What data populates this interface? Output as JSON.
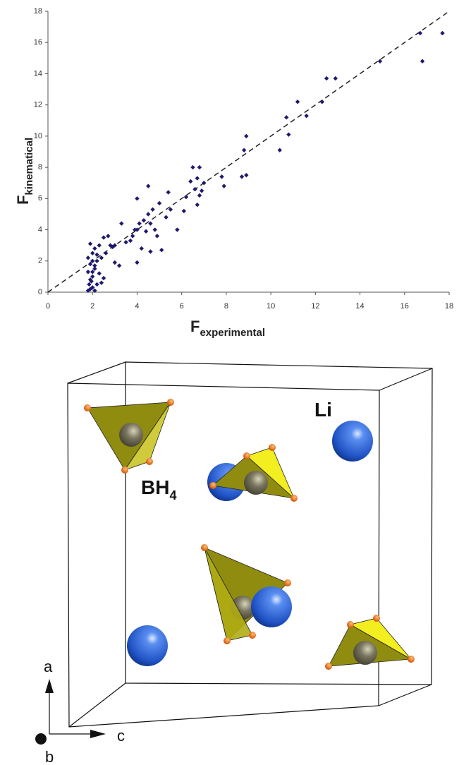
{
  "chart_data": {
    "type": "scatter",
    "xlabel_symbol": "F",
    "xlabel_subscript": "experimental",
    "ylabel_symbol": "F",
    "ylabel_subscript": "kinematical",
    "xlim": [
      0,
      18
    ],
    "ylim": [
      0,
      18
    ],
    "xticks": [
      0,
      2,
      4,
      6,
      8,
      10,
      12,
      14,
      16,
      18
    ],
    "yticks": [
      0,
      2,
      4,
      6,
      8,
      10,
      12,
      14,
      16,
      18
    ],
    "color": "#1f1a6e",
    "reference_line": "dashed",
    "x": [
      1.8,
      1.9,
      1.85,
      2.0,
      2.1,
      1.9,
      2.0,
      1.8,
      2.1,
      1.9,
      2.0,
      1.8,
      2.2,
      2.0,
      1.9,
      2.1,
      2.3,
      2.4,
      2.5,
      2.3,
      2.2,
      2.6,
      2.5,
      2.7,
      2.9,
      3.0,
      2.2,
      2.1,
      2.4,
      2.0,
      1.95,
      3.2,
      3.0,
      3.3,
      3.5,
      3.7,
      3.8,
      4.0,
      4.0,
      4.2,
      4.1,
      4.3,
      4.5,
      4.6,
      4.7,
      4.5,
      4.0,
      4.8,
      4.9,
      4.6,
      5.0,
      5.1,
      5.3,
      5.4,
      5.5,
      5.8,
      6.1,
      6.2,
      6.4,
      6.5,
      6.6,
      6.7,
      6.8,
      6.7,
      6.8,
      7.0,
      6.9,
      7.8,
      7.9,
      8.7,
      8.8,
      8.9,
      8.9,
      10.4,
      10.7,
      10.8,
      11.2,
      11.6,
      12.3,
      12.5,
      12.9,
      14.9,
      16.7,
      16.8,
      17.7,
      4.4,
      3.9,
      2.8
    ],
    "values": [
      0.1,
      0.2,
      0.5,
      0.3,
      0.1,
      0.8,
      1.0,
      1.3,
      1.5,
      1.8,
      2.0,
      2.2,
      2.4,
      2.5,
      3.1,
      2.8,
      3.0,
      0.6,
      0.9,
      1.2,
      0.5,
      2.5,
      3.5,
      3.6,
      2.9,
      3.0,
      2.0,
      1.7,
      2.2,
      1.3,
      0.7,
      1.7,
      1.9,
      4.4,
      3.2,
      3.3,
      3.6,
      4.0,
      1.9,
      2.8,
      4.4,
      4.6,
      5.0,
      4.4,
      5.3,
      6.8,
      6.0,
      4.0,
      3.6,
      2.6,
      5.7,
      2.7,
      4.8,
      6.4,
      5.3,
      4.0,
      5.2,
      6.1,
      7.1,
      8.0,
      6.6,
      7.3,
      8.0,
      5.6,
      6.2,
      7.0,
      6.5,
      7.4,
      6.8,
      7.4,
      9.1,
      10.0,
      7.5,
      9.1,
      11.2,
      10.1,
      12.2,
      11.3,
      12.2,
      13.7,
      13.7,
      14.8,
      16.6,
      14.8,
      16.6,
      3.9,
      4.0,
      3.0
    ]
  },
  "diagram": {
    "labels": {
      "li": "Li",
      "bh_main": "BH",
      "bh_sub": "4",
      "axis_a": "a",
      "axis_b": "b",
      "axis_c": "c"
    }
  }
}
